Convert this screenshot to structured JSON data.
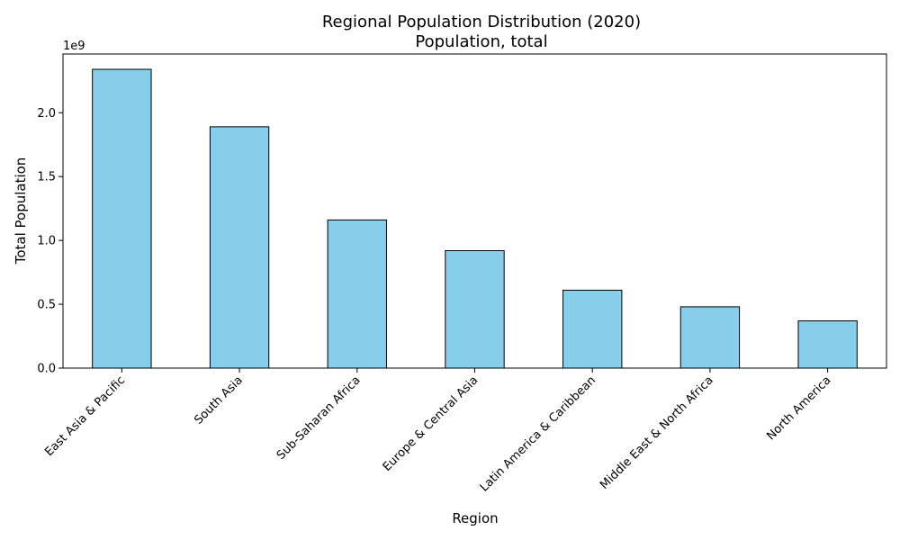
{
  "chart_data": {
    "type": "bar",
    "title": "Regional Population Distribution (2020)",
    "subtitle": "Population, total",
    "xlabel": "Region",
    "ylabel": "Total Population",
    "y_offset_label": "1e9",
    "categories": [
      "East Asia & Pacific",
      "South Asia",
      "Sub-Saharan Africa",
      "Europe & Central Asia",
      "Latin America & Caribbean",
      "Middle East & North Africa",
      "North America"
    ],
    "values": [
      2340000000,
      1890000000,
      1160000000,
      920000000,
      610000000,
      480000000,
      370000000
    ],
    "yticks": [
      0.0,
      0.5,
      1.0,
      1.5,
      2.0
    ],
    "ytick_labels": [
      "0.0",
      "0.5",
      "1.0",
      "1.5",
      "2.0"
    ],
    "ylim": [
      0,
      2460000000
    ],
    "grid": false,
    "bar_color": "#87CEEB",
    "bar_edge_color": "#000000"
  }
}
